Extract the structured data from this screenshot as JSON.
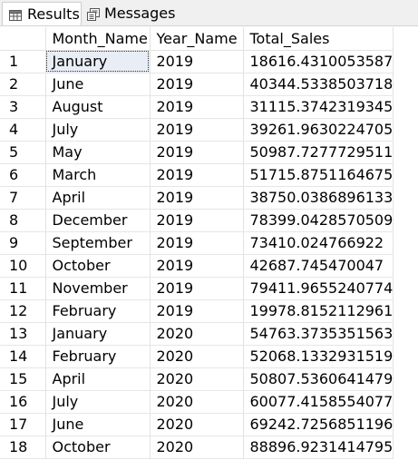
{
  "tabs": [
    {
      "label": "Results",
      "icon": "grid-icon",
      "active": true
    },
    {
      "label": "Messages",
      "icon": "messages-icon",
      "active": false
    }
  ],
  "columns": [
    "",
    "Month_Name",
    "Year_Name",
    "Total_Sales"
  ],
  "rows": [
    [
      "1",
      "January",
      "2019",
      "18616.4310053587"
    ],
    [
      "2",
      "June",
      "2019",
      "40344.5338503718"
    ],
    [
      "3",
      "August",
      "2019",
      "31115.3742319345"
    ],
    [
      "4",
      "July",
      "2019",
      "39261.9630224705"
    ],
    [
      "5",
      "May",
      "2019",
      "50987.7277729511"
    ],
    [
      "6",
      "March",
      "2019",
      "51715.8751164675"
    ],
    [
      "7",
      "April",
      "2019",
      "38750.0386896133"
    ],
    [
      "8",
      "December",
      "2019",
      "78399.0428570509"
    ],
    [
      "9",
      "September",
      "2019",
      "73410.024766922"
    ],
    [
      "10",
      "October",
      "2019",
      "42687.745470047"
    ],
    [
      "11",
      "November",
      "2019",
      "79411.9655240774"
    ],
    [
      "12",
      "February",
      "2019",
      "19978.8152112961"
    ],
    [
      "13",
      "January",
      "2020",
      "54763.3735351563"
    ],
    [
      "14",
      "February",
      "2020",
      "52068.1332931519"
    ],
    [
      "15",
      "April",
      "2020",
      "50807.5360641479"
    ],
    [
      "16",
      "July",
      "2020",
      "60077.4158554077"
    ],
    [
      "17",
      "June",
      "2020",
      "69242.7256851196"
    ],
    [
      "18",
      "October",
      "2020",
      "88896.9231414795"
    ]
  ]
}
